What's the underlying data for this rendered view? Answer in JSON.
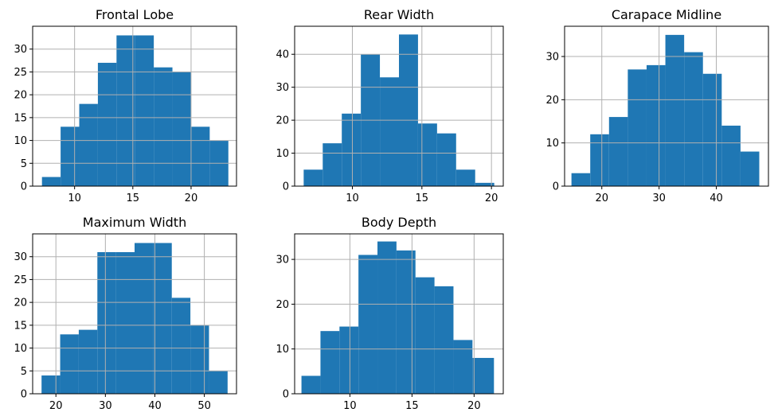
{
  "chart_data": [
    {
      "type": "bar",
      "title": "Frontal Lobe",
      "xlim": [
        6.4,
        23.9
      ],
      "ylim": [
        0,
        35
      ],
      "xticks": [
        10,
        15,
        20
      ],
      "yticks": [
        0,
        5,
        10,
        15,
        20,
        25,
        30
      ],
      "bins": [
        7.2,
        8.8,
        10.4,
        12.0,
        13.6,
        15.2,
        16.8,
        18.4,
        20.0,
        21.6,
        23.2
      ],
      "counts": [
        2,
        13,
        18,
        27,
        33,
        33,
        26,
        25,
        13,
        10
      ],
      "grid": true
    },
    {
      "type": "bar",
      "title": "Rear Width",
      "xlim": [
        5.85,
        20.85
      ],
      "ylim": [
        0,
        48.5
      ],
      "xticks": [
        10,
        15,
        20
      ],
      "yticks": [
        0,
        10,
        20,
        30,
        40
      ],
      "bins": [
        6.5,
        7.87,
        9.24,
        10.61,
        11.98,
        13.35,
        14.72,
        16.09,
        17.46,
        18.83,
        20.2
      ],
      "counts": [
        5,
        13,
        22,
        40,
        33,
        46,
        19,
        16,
        5,
        1
      ],
      "grid": true
    },
    {
      "type": "bar",
      "title": "Carapace Midline",
      "xlim": [
        13.5,
        49.1
      ],
      "ylim": [
        0,
        37
      ],
      "xticks": [
        20,
        30,
        40
      ],
      "yticks": [
        0,
        10,
        20,
        30
      ],
      "bins": [
        14.7,
        17.98,
        21.26,
        24.54,
        27.82,
        31.1,
        34.38,
        37.66,
        40.94,
        44.22,
        47.5
      ],
      "counts": [
        3,
        12,
        16,
        27,
        28,
        35,
        31,
        26,
        14,
        8
      ],
      "grid": true
    },
    {
      "type": "bar",
      "title": "Maximum Width",
      "xlim": [
        15.3,
        56.5
      ],
      "ylim": [
        0,
        35
      ],
      "xticks": [
        20,
        30,
        40,
        50
      ],
      "yticks": [
        0,
        5,
        10,
        15,
        20,
        25,
        30
      ],
      "bins": [
        17.1,
        20.86,
        24.62,
        28.38,
        32.14,
        35.9,
        39.66,
        43.42,
        47.18,
        50.94,
        54.7
      ],
      "counts": [
        4,
        13,
        14,
        31,
        31,
        33,
        33,
        21,
        15,
        5
      ],
      "grid": true
    },
    {
      "type": "bar",
      "title": "Body Depth",
      "xlim": [
        5.55,
        22.35
      ],
      "ylim": [
        0,
        35.7
      ],
      "xticks": [
        10,
        15,
        20
      ],
      "yticks": [
        0,
        10,
        20,
        30
      ],
      "bins": [
        6.1,
        7.63,
        9.16,
        10.69,
        12.22,
        13.75,
        15.28,
        16.81,
        18.34,
        19.87,
        21.6
      ],
      "counts": [
        4,
        14,
        15,
        31,
        34,
        32,
        26,
        24,
        12,
        8
      ],
      "grid": true
    }
  ]
}
